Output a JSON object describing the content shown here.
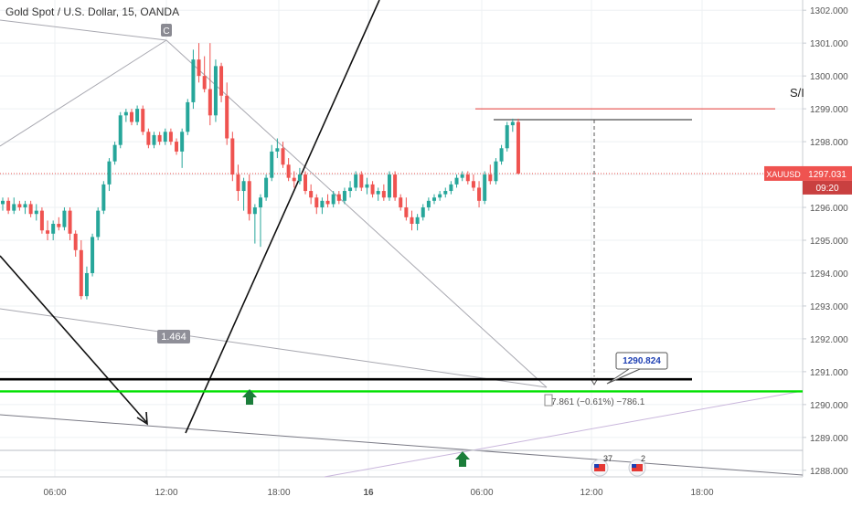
{
  "chart_data": {
    "type": "candlestick",
    "title": "Gold Spot / U.S. Dollar, 15, OANDA",
    "symbol": "XAUUSD",
    "last_price": "1297.031",
    "countdown": "09:20",
    "ylim": [
      1287.8,
      1302.2
    ],
    "y_ticks": [
      "1302.000",
      "1301.000",
      "1300.000",
      "1299.000",
      "1298.000",
      "1297.000",
      "1296.000",
      "1295.000",
      "1294.000",
      "1293.000",
      "1292.000",
      "1291.000",
      "1290.000",
      "1289.000",
      "1288.000"
    ],
    "x_ticks": [
      "06:00",
      "12:00",
      "18:00",
      "16",
      "06:00",
      "12:00",
      "18:00"
    ],
    "up_color": "#26a69a",
    "down_color": "#ef5350",
    "candles": [
      [
        1296.1,
        1296.3,
        1295.9,
        1296.2
      ],
      [
        1296.2,
        1296.3,
        1295.8,
        1295.9
      ],
      [
        1295.9,
        1296.3,
        1295.8,
        1296.1
      ],
      [
        1296.1,
        1296.2,
        1295.9,
        1296.0
      ],
      [
        1296.0,
        1296.2,
        1295.8,
        1296.1
      ],
      [
        1296.1,
        1296.2,
        1295.7,
        1295.8
      ],
      [
        1295.8,
        1296.1,
        1295.6,
        1295.9
      ],
      [
        1295.9,
        1296.0,
        1295.2,
        1295.3
      ],
      [
        1295.3,
        1295.6,
        1295.0,
        1295.2
      ],
      [
        1295.2,
        1295.6,
        1295.0,
        1295.5
      ],
      [
        1295.5,
        1295.7,
        1295.3,
        1295.4
      ],
      [
        1295.4,
        1296.0,
        1295.3,
        1295.9
      ],
      [
        1295.9,
        1296.0,
        1295.0,
        1295.2
      ],
      [
        1295.2,
        1295.3,
        1294.5,
        1294.7
      ],
      [
        1294.7,
        1295.0,
        1293.2,
        1293.3
      ],
      [
        1293.3,
        1294.2,
        1293.2,
        1294.0
      ],
      [
        1294.0,
        1295.2,
        1293.9,
        1295.1
      ],
      [
        1295.1,
        1296.0,
        1295.0,
        1295.9
      ],
      [
        1295.9,
        1296.8,
        1295.8,
        1296.7
      ],
      [
        1296.7,
        1297.5,
        1296.5,
        1297.4
      ],
      [
        1297.4,
        1298.0,
        1297.3,
        1297.9
      ],
      [
        1297.9,
        1298.9,
        1297.8,
        1298.8
      ],
      [
        1298.8,
        1299.0,
        1298.6,
        1298.9
      ],
      [
        1298.9,
        1299.0,
        1298.5,
        1298.6
      ],
      [
        1298.6,
        1299.1,
        1298.5,
        1299.0
      ],
      [
        1299.0,
        1299.1,
        1298.2,
        1298.3
      ],
      [
        1298.3,
        1298.4,
        1297.8,
        1297.9
      ],
      [
        1297.9,
        1298.3,
        1297.8,
        1298.2
      ],
      [
        1298.2,
        1298.3,
        1297.9,
        1298.0
      ],
      [
        1298.0,
        1298.4,
        1297.9,
        1298.3
      ],
      [
        1298.3,
        1298.4,
        1297.9,
        1298.0
      ],
      [
        1298.0,
        1298.1,
        1297.6,
        1297.7
      ],
      [
        1297.7,
        1298.4,
        1297.2,
        1298.3
      ],
      [
        1298.3,
        1299.3,
        1298.2,
        1299.2
      ],
      [
        1299.2,
        1300.8,
        1299.0,
        1300.5
      ],
      [
        1300.5,
        1301.0,
        1299.8,
        1300.0
      ],
      [
        1300.0,
        1300.6,
        1299.5,
        1299.6
      ],
      [
        1299.6,
        1301.0,
        1298.5,
        1298.8
      ],
      [
        1298.8,
        1300.5,
        1298.6,
        1300.3
      ],
      [
        1300.3,
        1300.4,
        1299.2,
        1299.4
      ],
      [
        1299.4,
        1299.8,
        1297.9,
        1298.1
      ],
      [
        1298.1,
        1298.3,
        1296.8,
        1297.0
      ],
      [
        1297.0,
        1297.3,
        1296.2,
        1296.5
      ],
      [
        1296.5,
        1296.9,
        1295.9,
        1296.8
      ],
      [
        1296.8,
        1297.0,
        1295.6,
        1295.8
      ],
      [
        1295.8,
        1296.1,
        1294.9,
        1296.0
      ],
      [
        1296.0,
        1296.4,
        1294.8,
        1296.3
      ],
      [
        1296.3,
        1297.0,
        1296.2,
        1296.9
      ],
      [
        1296.9,
        1297.9,
        1296.8,
        1297.7
      ],
      [
        1297.7,
        1298.1,
        1297.5,
        1297.8
      ],
      [
        1297.8,
        1298.0,
        1297.2,
        1297.3
      ],
      [
        1297.3,
        1297.5,
        1296.8,
        1296.9
      ],
      [
        1296.9,
        1297.1,
        1296.6,
        1296.8
      ],
      [
        1296.8,
        1297.2,
        1296.7,
        1297.0
      ],
      [
        1297.0,
        1297.1,
        1296.4,
        1296.5
      ],
      [
        1296.5,
        1296.7,
        1296.1,
        1296.3
      ],
      [
        1296.3,
        1296.4,
        1295.8,
        1296.0
      ],
      [
        1296.0,
        1296.3,
        1295.8,
        1296.2
      ],
      [
        1296.2,
        1296.4,
        1296.0,
        1296.1
      ],
      [
        1296.1,
        1296.5,
        1296.0,
        1296.4
      ],
      [
        1296.4,
        1296.5,
        1296.1,
        1296.2
      ],
      [
        1296.2,
        1296.6,
        1296.1,
        1296.5
      ],
      [
        1296.5,
        1296.8,
        1296.3,
        1296.6
      ],
      [
        1296.6,
        1297.1,
        1296.5,
        1297.0
      ],
      [
        1297.0,
        1297.1,
        1296.5,
        1296.6
      ],
      [
        1296.6,
        1296.9,
        1296.4,
        1296.7
      ],
      [
        1296.7,
        1296.8,
        1296.3,
        1296.4
      ],
      [
        1296.4,
        1296.6,
        1296.2,
        1296.5
      ],
      [
        1296.5,
        1296.7,
        1296.2,
        1296.3
      ],
      [
        1296.3,
        1297.1,
        1296.2,
        1297.0
      ],
      [
        1297.0,
        1297.1,
        1296.2,
        1296.3
      ],
      [
        1296.3,
        1296.4,
        1295.9,
        1296.0
      ],
      [
        1296.0,
        1296.3,
        1295.6,
        1295.7
      ],
      [
        1295.7,
        1295.9,
        1295.3,
        1295.5
      ],
      [
        1295.5,
        1295.8,
        1295.3,
        1295.7
      ],
      [
        1295.7,
        1296.1,
        1295.6,
        1296.0
      ],
      [
        1296.0,
        1296.3,
        1295.9,
        1296.2
      ],
      [
        1296.2,
        1296.4,
        1296.1,
        1296.3
      ],
      [
        1296.3,
        1296.5,
        1296.2,
        1296.4
      ],
      [
        1296.4,
        1296.6,
        1296.3,
        1296.5
      ],
      [
        1296.5,
        1296.8,
        1296.4,
        1296.7
      ],
      [
        1296.7,
        1297.0,
        1296.6,
        1296.9
      ],
      [
        1296.9,
        1297.1,
        1296.8,
        1297.0
      ],
      [
        1297.0,
        1297.1,
        1296.7,
        1296.8
      ],
      [
        1296.8,
        1297.0,
        1296.5,
        1296.6
      ],
      [
        1296.6,
        1296.8,
        1296.0,
        1296.2
      ],
      [
        1296.2,
        1297.1,
        1296.1,
        1297.0
      ],
      [
        1297.0,
        1297.3,
        1296.7,
        1296.8
      ],
      [
        1296.8,
        1297.5,
        1296.7,
        1297.4
      ],
      [
        1297.4,
        1297.9,
        1297.3,
        1297.8
      ],
      [
        1297.8,
        1298.6,
        1297.7,
        1298.5
      ],
      [
        1298.5,
        1298.7,
        1298.3,
        1298.6
      ],
      [
        1298.6,
        1298.7,
        1297.0,
        1297.031
      ]
    ],
    "annotations": {
      "c_marker": "C",
      "ratio_label": "1.464",
      "price_label": "1290.824",
      "fib_label": "7.861 (−0.61%) −786.1",
      "event_count_1": "37",
      "event_count_2": "2",
      "sr_label": "S/I"
    },
    "colors": {
      "support_line": "#000000",
      "green_line": "#00e000",
      "red_level": "#e53935",
      "price_line": "#ef5350",
      "arrow_green": "#1b7d3a",
      "label_border": "#2962ff"
    }
  }
}
